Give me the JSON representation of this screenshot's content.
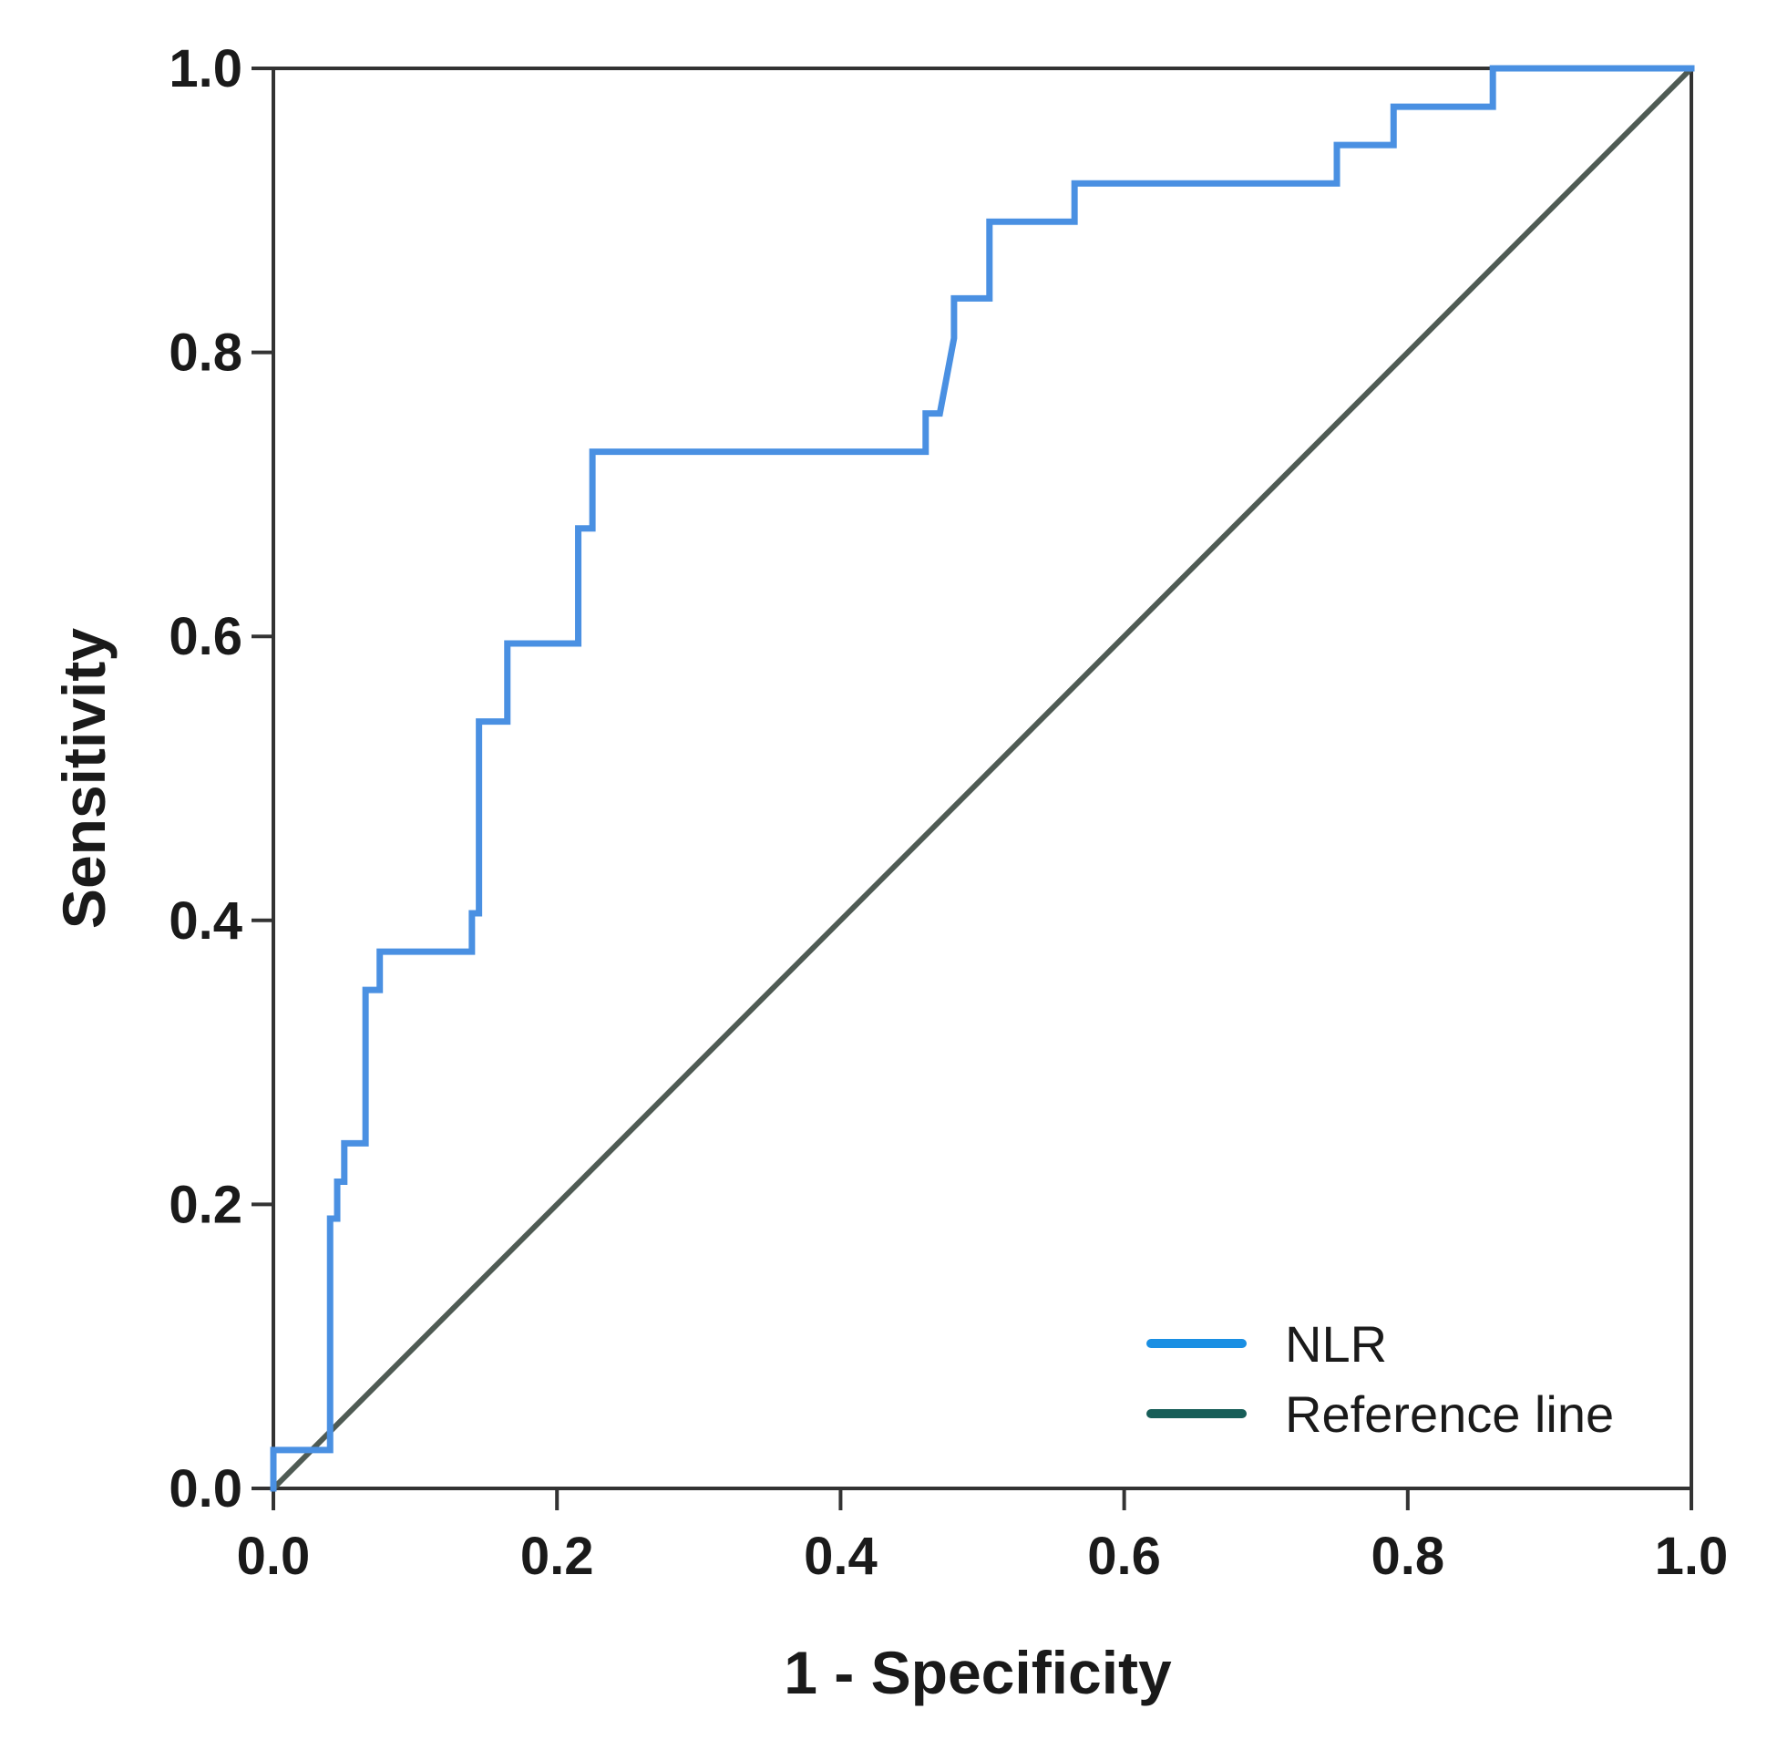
{
  "chart_data": {
    "type": "line",
    "title": "",
    "xlabel": "1 - Specificity",
    "ylabel": "Sensitivity",
    "xlim": [
      0.0,
      1.0
    ],
    "ylim": [
      0.0,
      1.0
    ],
    "xticks": [
      "0.0",
      "0.2",
      "0.4",
      "0.6",
      "0.8",
      "1.0"
    ],
    "yticks": [
      "0.0",
      "0.2",
      "0.4",
      "0.6",
      "0.8",
      "1.0"
    ],
    "grid": false,
    "legend_position": "bottom-right",
    "series": [
      {
        "name": "NLR",
        "color": "#4a90e2",
        "x": [
          0.0,
          0.0,
          0.04,
          0.04,
          0.04,
          0.045,
          0.045,
          0.05,
          0.05,
          0.055,
          0.055,
          0.065,
          0.065,
          0.075,
          0.075,
          0.14,
          0.14,
          0.145,
          0.145,
          0.145,
          0.165,
          0.165,
          0.215,
          0.215,
          0.225,
          0.225,
          0.46,
          0.46,
          0.47,
          0.48,
          0.48,
          0.505,
          0.505,
          0.565,
          0.565,
          0.75,
          0.75,
          0.79,
          0.79,
          0.86,
          0.86,
          1.0
        ],
        "y": [
          0.0,
          0.027,
          0.027,
          0.19,
          0.19,
          0.19,
          0.216,
          0.216,
          0.243,
          0.243,
          0.243,
          0.243,
          0.351,
          0.351,
          0.378,
          0.378,
          0.405,
          0.405,
          0.54,
          0.54,
          0.54,
          0.595,
          0.595,
          0.676,
          0.676,
          0.73,
          0.73,
          0.757,
          0.757,
          0.81,
          0.838,
          0.838,
          0.892,
          0.892,
          0.919,
          0.919,
          0.946,
          0.946,
          0.973,
          0.973,
          1.0,
          1.0
        ]
      },
      {
        "name": "Reference line",
        "color": "#4f5b54",
        "x": [
          0.0,
          1.0
        ],
        "y": [
          0.0,
          1.0
        ]
      }
    ],
    "legend": [
      {
        "label": "NLR",
        "swatch_color": "#1a8fe3"
      },
      {
        "label": "Reference line",
        "swatch_color": "#175e58"
      }
    ]
  }
}
